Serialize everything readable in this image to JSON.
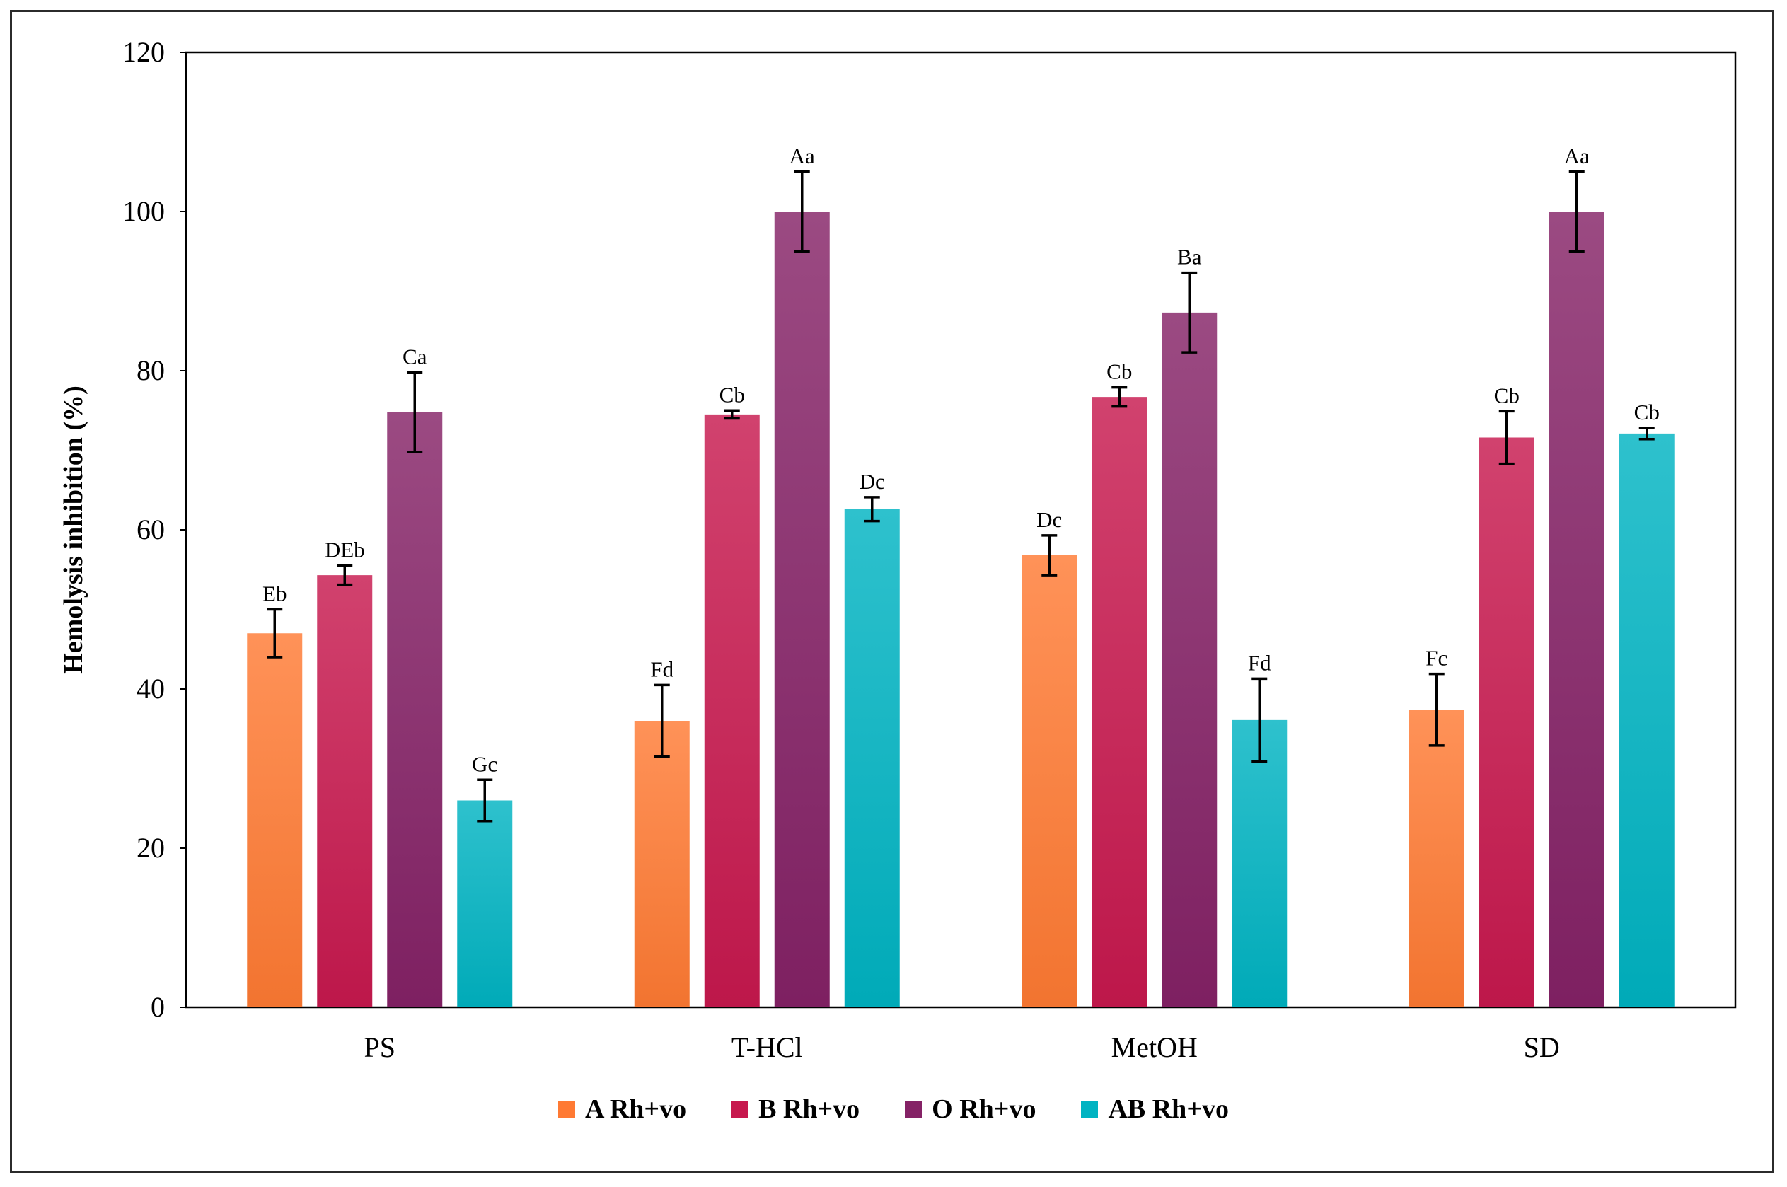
{
  "chart_data": {
    "type": "bar",
    "title": "",
    "xlabel": "",
    "ylabel": "Hemolysis inhibition (%)",
    "ylim": [
      0,
      120
    ],
    "yticks": [
      "0",
      "20",
      "40",
      "60",
      "80",
      "100",
      "120"
    ],
    "categories": [
      "PS",
      "T-HCl",
      "MetOH",
      "SD"
    ],
    "series": [
      {
        "name": "A Rh+vo",
        "color": "#FF7A33",
        "values": [
          47,
          36,
          56.8,
          37.4
        ],
        "errors": [
          3,
          4.5,
          2.5,
          4.5
        ],
        "labels": [
          "Eb",
          "Fd",
          "Dc",
          "Fc"
        ]
      },
      {
        "name": "B Rh+vo",
        "color": "#C7184E",
        "values": [
          54.3,
          74.5,
          76.7,
          71.6
        ],
        "errors": [
          1.2,
          0.5,
          1.2,
          3.3
        ],
        "labels": [
          "DEb",
          "Cb",
          "Cb",
          "Cb"
        ]
      },
      {
        "name": "O Rh+vo",
        "color": "#852266",
        "values": [
          74.8,
          100,
          87.3,
          100
        ],
        "errors": [
          5,
          5,
          5,
          5
        ],
        "labels": [
          "Ca",
          "Aa",
          "Ba",
          "Aa"
        ]
      },
      {
        "name": "AB Rh+vo",
        "color": "#00B3C2",
        "values": [
          26,
          62.6,
          36.1,
          72.1
        ],
        "errors": [
          2.6,
          1.5,
          5.2,
          0.7
        ],
        "labels": [
          "Gc",
          "Dc",
          "Fd",
          "Cb"
        ]
      }
    ],
    "grid": false,
    "legend_position": "bottom"
  }
}
